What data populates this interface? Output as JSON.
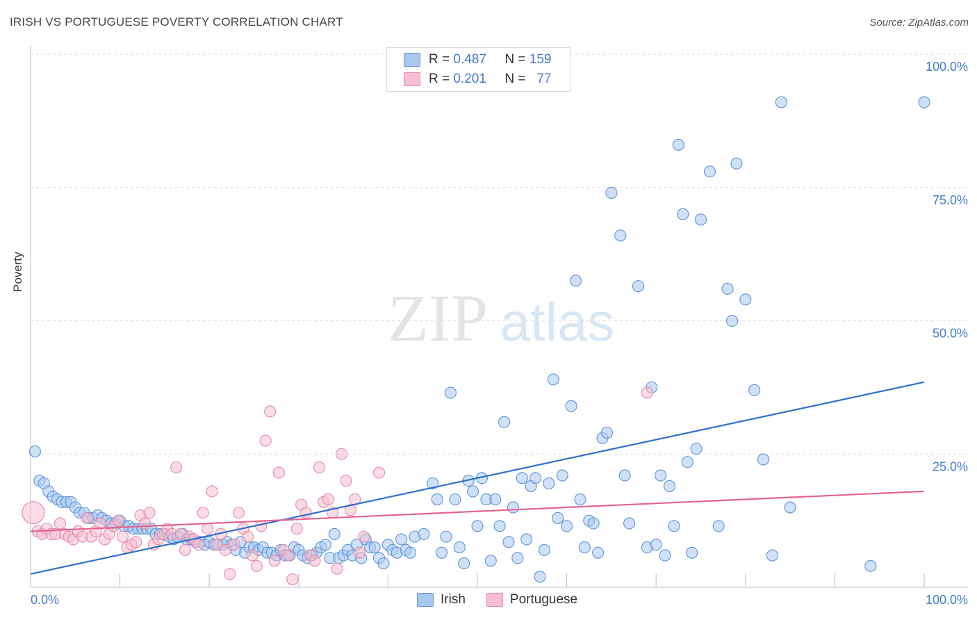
{
  "title": "IRISH VS PORTUGUESE POVERTY CORRELATION CHART",
  "source": "Source: ZipAtlas.com",
  "watermark": {
    "zip": "ZIP",
    "atlas": "atlas"
  },
  "legend_top": {
    "rows": [
      {
        "r_label": "R =",
        "r_value": "0.487",
        "n_label": "N =",
        "n_value": "159"
      },
      {
        "r_label": "R =",
        "r_value": "0.201",
        "n_label": "N =",
        "n_value": "77"
      }
    ]
  },
  "colors": {
    "irish_fill": "#a9c8f0",
    "irish_stroke": "#5b93d8",
    "irish_line": "#2f6fd0",
    "port_fill": "#f7bfd0",
    "port_stroke": "#e688a6",
    "port_line": "#e2648f",
    "tick_text": "#3f7dd1",
    "grid": "#dddddd"
  },
  "chart_data": {
    "type": "scatter",
    "title": "IRISH VS PORTUGUESE POVERTY CORRELATION CHART",
    "xlabel": "",
    "ylabel": "Poverty",
    "xlim": [
      0,
      100
    ],
    "ylim": [
      0,
      100
    ],
    "x_tick_labels": [
      "0.0%",
      "100.0%"
    ],
    "y_tick_labels": [
      "25.0%",
      "50.0%",
      "75.0%",
      "100.0%"
    ],
    "y_ticks": [
      25,
      50,
      75,
      100
    ],
    "grid": true,
    "legend_position": "bottom",
    "series": [
      {
        "name": "Irish",
        "stats": {
          "R": 0.487,
          "N": 159
        },
        "trend": {
          "x": [
            0,
            100
          ],
          "y": [
            2.5,
            38.5
          ]
        },
        "points": [
          [
            0.5,
            25.5
          ],
          [
            1,
            20
          ],
          [
            1.5,
            19.5
          ],
          [
            2,
            18
          ],
          [
            2.5,
            17
          ],
          [
            3,
            16.5
          ],
          [
            3.5,
            16
          ],
          [
            4,
            16
          ],
          [
            4.5,
            16
          ],
          [
            5,
            15
          ],
          [
            5.5,
            14
          ],
          [
            6,
            14
          ],
          [
            6.5,
            13
          ],
          [
            7,
            13
          ],
          [
            7.5,
            13.5
          ],
          [
            8,
            13
          ],
          [
            8.5,
            12.5
          ],
          [
            9,
            12
          ],
          [
            9.5,
            12
          ],
          [
            10,
            12.5
          ],
          [
            10.5,
            11.5
          ],
          [
            11,
            11.5
          ],
          [
            11.5,
            11
          ],
          [
            12,
            11
          ],
          [
            12.5,
            11
          ],
          [
            13,
            11
          ],
          [
            13.5,
            11
          ],
          [
            14,
            10
          ],
          [
            14.5,
            10
          ],
          [
            15,
            10
          ],
          [
            15.5,
            9.5
          ],
          [
            16,
            9
          ],
          [
            16.5,
            9.5
          ],
          [
            17,
            10
          ],
          [
            17.5,
            9
          ],
          [
            18,
            9
          ],
          [
            18.5,
            8.5
          ],
          [
            19,
            8.5
          ],
          [
            19.5,
            8
          ],
          [
            20,
            8.5
          ],
          [
            20.5,
            8
          ],
          [
            21,
            8
          ],
          [
            21.5,
            8
          ],
          [
            22,
            8.5
          ],
          [
            22.5,
            8
          ],
          [
            23,
            7
          ],
          [
            23.5,
            8.5
          ],
          [
            24,
            6.5
          ],
          [
            24.5,
            7.5
          ],
          [
            25,
            7.5
          ],
          [
            25.5,
            7
          ],
          [
            26,
            7.5
          ],
          [
            26.5,
            6.5
          ],
          [
            27,
            6.5
          ],
          [
            27.5,
            6
          ],
          [
            28,
            7
          ],
          [
            28.5,
            6
          ],
          [
            29,
            6
          ],
          [
            29.5,
            7.5
          ],
          [
            30,
            7
          ],
          [
            30.5,
            6
          ],
          [
            31,
            5.5
          ],
          [
            31.5,
            6
          ],
          [
            32,
            6.5
          ],
          [
            32.5,
            7.5
          ],
          [
            33,
            8
          ],
          [
            33.5,
            5.5
          ],
          [
            34,
            10
          ],
          [
            34.5,
            5.5
          ],
          [
            35,
            6
          ],
          [
            35.5,
            7
          ],
          [
            36,
            6
          ],
          [
            36.5,
            8
          ],
          [
            37,
            5.5
          ],
          [
            37.5,
            9
          ],
          [
            38,
            7.5
          ],
          [
            38.5,
            7.5
          ],
          [
            39,
            5.5
          ],
          [
            39.5,
            4.5
          ],
          [
            40,
            8
          ],
          [
            40.5,
            7
          ],
          [
            41,
            6.5
          ],
          [
            41.5,
            9
          ],
          [
            42,
            7
          ],
          [
            42.5,
            6.5
          ],
          [
            43,
            9.5
          ],
          [
            44,
            10
          ],
          [
            45,
            19.5
          ],
          [
            45.5,
            16.5
          ],
          [
            46,
            6.5
          ],
          [
            46.5,
            9.5
          ],
          [
            47,
            36.5
          ],
          [
            47.5,
            16.5
          ],
          [
            48,
            7.5
          ],
          [
            48.5,
            4.5
          ],
          [
            49,
            20
          ],
          [
            49.5,
            18
          ],
          [
            50,
            11.5
          ],
          [
            50.5,
            20.5
          ],
          [
            51,
            16.5
          ],
          [
            51.5,
            5
          ],
          [
            52,
            16.5
          ],
          [
            52.5,
            11.5
          ],
          [
            53,
            31
          ],
          [
            53.5,
            8.5
          ],
          [
            54,
            15
          ],
          [
            54.5,
            5.5
          ],
          [
            55,
            20.5
          ],
          [
            55.5,
            9
          ],
          [
            56,
            19
          ],
          [
            56.5,
            20.5
          ],
          [
            57,
            2
          ],
          [
            57.5,
            7
          ],
          [
            58,
            19.5
          ],
          [
            58.5,
            39
          ],
          [
            59,
            13
          ],
          [
            59.5,
            21
          ],
          [
            60,
            11.5
          ],
          [
            60.5,
            34
          ],
          [
            61,
            57.5
          ],
          [
            61.5,
            16.5
          ],
          [
            62,
            7.5
          ],
          [
            62.5,
            12.5
          ],
          [
            63,
            12
          ],
          [
            63.5,
            6.5
          ],
          [
            64,
            28
          ],
          [
            64.5,
            29
          ],
          [
            65,
            74
          ],
          [
            66,
            66
          ],
          [
            66.5,
            21
          ],
          [
            67,
            12
          ],
          [
            68,
            56.5
          ],
          [
            69,
            7.5
          ],
          [
            69.5,
            37.5
          ],
          [
            70,
            8
          ],
          [
            70.5,
            21
          ],
          [
            71,
            6
          ],
          [
            71.5,
            19
          ],
          [
            72,
            11.5
          ],
          [
            72.5,
            83
          ],
          [
            73,
            70
          ],
          [
            73.5,
            23.5
          ],
          [
            74,
            6.5
          ],
          [
            74.5,
            26
          ],
          [
            75,
            69
          ],
          [
            76,
            78
          ],
          [
            77,
            11.5
          ],
          [
            78,
            56
          ],
          [
            78.5,
            50
          ],
          [
            79,
            79.5
          ],
          [
            80,
            54
          ],
          [
            81,
            37
          ],
          [
            82,
            24
          ],
          [
            83,
            6
          ],
          [
            84,
            91
          ],
          [
            85,
            15
          ],
          [
            94,
            4
          ],
          [
            100,
            91
          ]
        ]
      },
      {
        "name": "Portuguese",
        "stats": {
          "R": 0.201,
          "N": 77
        },
        "trend": {
          "x": [
            0,
            100
          ],
          "y": [
            10.5,
            18
          ]
        },
        "points": [
          [
            0.3,
            14
          ],
          [
            0.8,
            10.5
          ],
          [
            1.3,
            10
          ],
          [
            1.8,
            11
          ],
          [
            2.3,
            10
          ],
          [
            2.8,
            10
          ],
          [
            3.3,
            12
          ],
          [
            3.8,
            10
          ],
          [
            4.3,
            9.5
          ],
          [
            4.8,
            9
          ],
          [
            5.3,
            10.5
          ],
          [
            5.8,
            9.5
          ],
          [
            6.3,
            13
          ],
          [
            6.8,
            9.5
          ],
          [
            7.3,
            10.5
          ],
          [
            7.8,
            12
          ],
          [
            8.3,
            9
          ],
          [
            8.8,
            10
          ],
          [
            9.3,
            11.5
          ],
          [
            9.8,
            12.5
          ],
          [
            10.3,
            9.5
          ],
          [
            10.8,
            7.5
          ],
          [
            11.3,
            8
          ],
          [
            11.8,
            8.5
          ],
          [
            12.3,
            13.5
          ],
          [
            12.8,
            12
          ],
          [
            13.3,
            14
          ],
          [
            13.8,
            8
          ],
          [
            14.3,
            9
          ],
          [
            14.8,
            10
          ],
          [
            15.3,
            11
          ],
          [
            15.8,
            10
          ],
          [
            16.3,
            22.5
          ],
          [
            16.8,
            10
          ],
          [
            17.3,
            7
          ],
          [
            17.8,
            9.5
          ],
          [
            18.3,
            9
          ],
          [
            18.8,
            8
          ],
          [
            19.3,
            14
          ],
          [
            19.8,
            11
          ],
          [
            20.3,
            18
          ],
          [
            20.8,
            8
          ],
          [
            21.3,
            10
          ],
          [
            21.8,
            7
          ],
          [
            22.3,
            2.5
          ],
          [
            22.8,
            8
          ],
          [
            23.3,
            14
          ],
          [
            23.8,
            11
          ],
          [
            24.3,
            9.5
          ],
          [
            24.8,
            6
          ],
          [
            25.3,
            4
          ],
          [
            25.8,
            11.5
          ],
          [
            26.3,
            27.5
          ],
          [
            26.8,
            33
          ],
          [
            27.3,
            5
          ],
          [
            27.8,
            21.5
          ],
          [
            28.3,
            7
          ],
          [
            28.8,
            6
          ],
          [
            29.3,
            1.5
          ],
          [
            29.8,
            11
          ],
          [
            30.3,
            15.5
          ],
          [
            30.8,
            14
          ],
          [
            31.3,
            6
          ],
          [
            31.8,
            5
          ],
          [
            32.3,
            22.5
          ],
          [
            32.8,
            16
          ],
          [
            33.3,
            16.5
          ],
          [
            33.8,
            14
          ],
          [
            34.3,
            3.5
          ],
          [
            34.8,
            25
          ],
          [
            35.3,
            20
          ],
          [
            35.8,
            14.5
          ],
          [
            36.3,
            16.5
          ],
          [
            36.8,
            6.5
          ],
          [
            37.3,
            9.5
          ],
          [
            39,
            21.5
          ],
          [
            69,
            36.5
          ]
        ]
      }
    ]
  }
}
